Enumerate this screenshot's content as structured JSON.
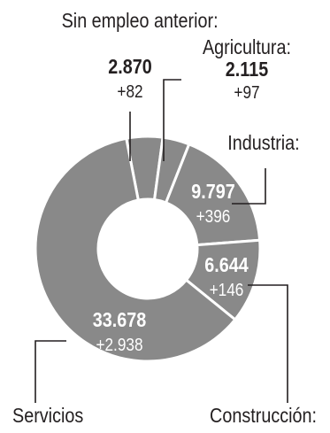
{
  "colors": {
    "slice": "#898989",
    "separator": "#ffffff",
    "leader": "#231f20",
    "text": "#231f20",
    "inner_text": "#ffffff"
  },
  "chart_data": {
    "type": "pie",
    "donut": true,
    "title": "",
    "categories": [
      "Sin empleo anterior:",
      "Agricultura:",
      "Industria:",
      "Construcción:",
      "Servicios"
    ],
    "values": [
      2870,
      2115,
      9797,
      6644,
      33678
    ],
    "value_labels": [
      "2.870",
      "2.115",
      "9.797",
      "6.644",
      "33.678"
    ],
    "change_labels": [
      "+82",
      "+97",
      "+396",
      "+146",
      "+2.938"
    ],
    "legend": "none"
  }
}
